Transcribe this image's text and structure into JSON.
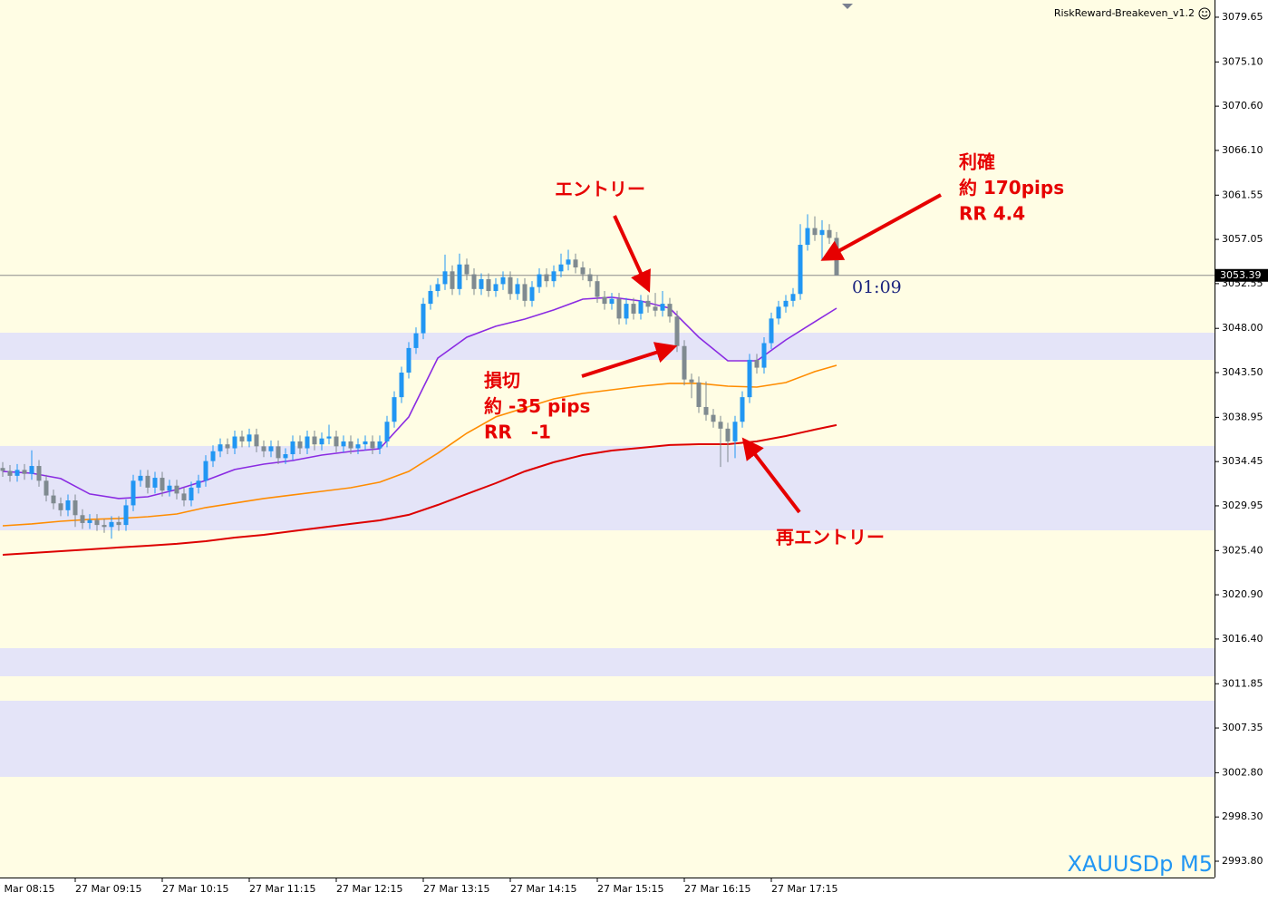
{
  "chart_data": {
    "type": "candlestick",
    "title": "RiskReward-Breakeven_v1.2",
    "symbol_label": "XAUUSDp M5",
    "countdown": "01:09",
    "up_color": "#2196f3",
    "down_color": "#7f8a90",
    "zone_color": "#e4e4f8",
    "price_line_color": "#8c8c8c",
    "categories": [
      null,
      null,
      null,
      null,
      null,
      null,
      null,
      null,
      null,
      null,
      null,
      null,
      null,
      null,
      null,
      null,
      null,
      null,
      null,
      null,
      null,
      null,
      null,
      null,
      null,
      null,
      null,
      null,
      null,
      null,
      null,
      null,
      null,
      null,
      null,
      null,
      null,
      null,
      null,
      null,
      null,
      null,
      null,
      null,
      null,
      null,
      null,
      null,
      null,
      null,
      null,
      null,
      null,
      null,
      null,
      null,
      null,
      null,
      null,
      null,
      null,
      null,
      null,
      null,
      null,
      null,
      null,
      null,
      null,
      null,
      null,
      null,
      null,
      null,
      null,
      null,
      null,
      null,
      null,
      null,
      null,
      null,
      null,
      null,
      null,
      null,
      null,
      null,
      null,
      null,
      null,
      null,
      null,
      null,
      null,
      null,
      null,
      null,
      null,
      null,
      null,
      null,
      null,
      null,
      null,
      null,
      null,
      null,
      null,
      null,
      null,
      null,
      null,
      null,
      null,
      null
    ],
    "open": [
      3033.8,
      3033.5,
      3033.0,
      3033.6,
      3033.2,
      3034.0,
      3032.5,
      3031.0,
      3030.2,
      3029.5,
      3030.5,
      3029.0,
      3028.2,
      3028.5,
      3028.0,
      3027.8,
      3028.3,
      3028.0,
      3030.0,
      3032.5,
      3033.0,
      3031.8,
      3032.8,
      3031.5,
      3032.0,
      3031.2,
      3030.5,
      3031.8,
      3032.5,
      3034.5,
      3035.5,
      3036.2,
      3035.8,
      3037.0,
      3036.5,
      3037.2,
      3036.0,
      3035.5,
      3036.0,
      3034.8,
      3035.2,
      3036.5,
      3035.8,
      3037.0,
      3036.2,
      3036.8,
      3037.0,
      3036.0,
      3036.5,
      3035.8,
      3036.2,
      3036.5,
      3035.8,
      3036.5,
      3038.5,
      3041.0,
      3043.5,
      3046.0,
      3047.5,
      3050.5,
      3051.8,
      3052.5,
      3053.8,
      3052.0,
      3054.5,
      3053.5,
      3052.0,
      3053.0,
      3051.8,
      3052.5,
      3053.2,
      3051.5,
      3052.5,
      3050.8,
      3052.2,
      3053.5,
      3052.8,
      3053.8,
      3054.5,
      3055.0,
      3054.2,
      3053.5,
      3052.8,
      3051.2,
      3050.5,
      3051.0,
      3049.0,
      3050.5,
      3049.5,
      3050.8,
      3050.2,
      3049.8,
      3050.5,
      3049.2,
      3046.2,
      3042.8,
      3042.5,
      3040.0,
      3039.2,
      3038.5,
      3037.8,
      3036.5,
      3038.5,
      3041.0,
      3044.8,
      3044.0,
      3046.5,
      3049.0,
      3050.2,
      3050.8,
      3051.5,
      3056.5,
      3058.2,
      3057.5,
      3058.0,
      3057.2
    ],
    "high": [
      3034.4,
      3034.1,
      3034.2,
      3034.2,
      3035.6,
      3034.6,
      3033.1,
      3031.6,
      3030.8,
      3031.1,
      3031.1,
      3029.6,
      3029.1,
      3029.1,
      3028.6,
      3028.9,
      3028.9,
      3030.6,
      3033.1,
      3033.6,
      3033.6,
      3033.4,
      3033.4,
      3032.6,
      3032.6,
      3031.8,
      3032.4,
      3033.1,
      3035.1,
      3036.1,
      3036.8,
      3036.8,
      3037.6,
      3037.6,
      3037.8,
      3037.8,
      3036.6,
      3036.6,
      3036.6,
      3035.8,
      3037.1,
      3037.1,
      3037.6,
      3037.6,
      3037.4,
      3038.2,
      3037.6,
      3037.1,
      3037.1,
      3036.8,
      3037.1,
      3037.1,
      3037.1,
      3039.1,
      3041.6,
      3044.1,
      3046.6,
      3048.1,
      3051.1,
      3052.4,
      3053.1,
      3055.5,
      3054.4,
      3055.6,
      3055.1,
      3054.1,
      3053.6,
      3053.6,
      3053.1,
      3053.8,
      3053.8,
      3053.1,
      3053.1,
      3052.8,
      3054.1,
      3054.1,
      3054.4,
      3055.6,
      3056.0,
      3055.6,
      3054.8,
      3054.1,
      3053.4,
      3051.8,
      3051.6,
      3051.6,
      3051.1,
      3051.1,
      3051.4,
      3051.4,
      3051.6,
      3051.8,
      3051.1,
      3049.8,
      3046.8,
      3043.4,
      3043.1,
      3042.6,
      3039.8,
      3039.1,
      3038.4,
      3039.1,
      3041.6,
      3045.4,
      3045.4,
      3047.1,
      3049.6,
      3050.8,
      3051.4,
      3052.1,
      3058.6,
      3059.6,
      3059.4,
      3059.0,
      3058.6,
      3057.8
    ],
    "low": [
      3032.9,
      3032.4,
      3032.4,
      3032.6,
      3032.6,
      3031.9,
      3030.4,
      3029.6,
      3028.9,
      3028.9,
      3027.8,
      3027.6,
      3027.6,
      3027.4,
      3027.2,
      3026.6,
      3027.4,
      3027.4,
      3029.4,
      3031.9,
      3031.2,
      3031.2,
      3030.9,
      3030.9,
      3030.6,
      3029.9,
      3029.9,
      3031.2,
      3031.9,
      3033.9,
      3034.9,
      3035.2,
      3035.2,
      3035.9,
      3035.9,
      3035.4,
      3034.9,
      3034.9,
      3034.2,
      3034.2,
      3034.6,
      3035.2,
      3035.2,
      3035.6,
      3035.6,
      3036.2,
      3035.4,
      3035.4,
      3035.2,
      3035.2,
      3035.6,
      3035.2,
      3035.2,
      3035.9,
      3037.9,
      3040.4,
      3042.9,
      3045.4,
      3046.9,
      3049.9,
      3051.2,
      3051.9,
      3051.4,
      3051.4,
      3052.9,
      3051.4,
      3051.4,
      3051.2,
      3051.2,
      3051.9,
      3050.9,
      3050.9,
      3050.2,
      3050.2,
      3051.6,
      3052.2,
      3052.2,
      3053.2,
      3053.9,
      3053.6,
      3052.9,
      3052.2,
      3050.6,
      3049.9,
      3049.9,
      3048.4,
      3048.4,
      3048.9,
      3048.9,
      3049.6,
      3049.2,
      3049.2,
      3048.6,
      3045.6,
      3042.2,
      3040.9,
      3039.4,
      3038.6,
      3037.9,
      3033.9,
      3034.4,
      3034.8,
      3037.9,
      3040.4,
      3043.4,
      3043.4,
      3045.9,
      3048.4,
      3049.6,
      3050.2,
      3050.9,
      3055.9,
      3056.9,
      3054.9,
      3056.6,
      3053.39
    ],
    "close": [
      3033.5,
      3033.0,
      3033.6,
      3033.2,
      3034.0,
      3032.5,
      3031.0,
      3030.2,
      3029.5,
      3030.5,
      3029.0,
      3028.2,
      3028.5,
      3028.0,
      3027.8,
      3028.3,
      3028.0,
      3030.0,
      3032.5,
      3033.0,
      3031.8,
      3032.8,
      3031.5,
      3032.0,
      3031.2,
      3030.5,
      3031.8,
      3032.5,
      3034.5,
      3035.5,
      3036.2,
      3035.8,
      3037.0,
      3036.5,
      3037.2,
      3036.0,
      3035.5,
      3036.0,
      3034.8,
      3035.2,
      3036.5,
      3035.8,
      3037.0,
      3036.2,
      3036.8,
      3037.0,
      3036.0,
      3036.5,
      3035.8,
      3036.2,
      3036.5,
      3035.8,
      3036.5,
      3038.5,
      3041.0,
      3043.5,
      3046.0,
      3047.5,
      3050.5,
      3051.8,
      3052.5,
      3053.8,
      3052.0,
      3054.5,
      3053.5,
      3052.0,
      3053.0,
      3051.8,
      3052.5,
      3053.2,
      3051.5,
      3052.5,
      3050.8,
      3052.2,
      3053.5,
      3052.8,
      3053.8,
      3054.5,
      3055.0,
      3054.2,
      3053.5,
      3052.8,
      3051.2,
      3050.5,
      3051.0,
      3049.0,
      3050.5,
      3049.5,
      3050.8,
      3050.2,
      3049.8,
      3050.5,
      3049.2,
      3046.2,
      3042.8,
      3042.5,
      3040.0,
      3039.2,
      3038.5,
      3037.8,
      3036.5,
      3038.5,
      3041.0,
      3044.8,
      3044.0,
      3046.5,
      3049.0,
      3050.2,
      3050.8,
      3051.5,
      3056.5,
      3058.2,
      3057.5,
      3058.0,
      3057.2,
      3053.39
    ],
    "x": [
      0,
      4,
      8,
      12,
      16,
      20,
      24,
      28,
      32,
      36,
      40,
      44,
      48,
      52,
      56,
      60,
      64,
      68,
      72,
      76,
      80,
      84,
      88,
      92,
      96,
      100,
      104,
      108,
      112,
      115
    ],
    "series": [
      {
        "color": "#8a2be2",
        "values": [
          3033.45,
          3033.27,
          3032.72,
          3031.15,
          3030.69,
          3030.87,
          3031.61,
          3032.53,
          3033.64,
          3034.19,
          3034.56,
          3035.11,
          3035.48,
          3035.76,
          3038.99,
          3044.98,
          3047.1,
          3048.21,
          3048.94,
          3049.87,
          3050.97,
          3051.16,
          3050.79,
          3050.05,
          3047.1,
          3044.7,
          3044.7,
          3046.82,
          3048.67,
          3050.05
        ]
      },
      {
        "color": "#ff8c00",
        "values": [
          3027.92,
          3028.11,
          3028.38,
          3028.57,
          3028.66,
          3028.84,
          3029.12,
          3029.77,
          3030.23,
          3030.69,
          3031.06,
          3031.42,
          3031.79,
          3032.35,
          3033.45,
          3035.3,
          3037.33,
          3038.99,
          3039.91,
          3040.83,
          3041.38,
          3041.75,
          3042.12,
          3042.4,
          3042.4,
          3042.12,
          3042.03,
          3042.49,
          3043.6,
          3044.24
        ]
      },
      {
        "color": "#dd0000",
        "values": [
          3024.97,
          3025.15,
          3025.34,
          3025.52,
          3025.71,
          3025.89,
          3026.08,
          3026.35,
          3026.72,
          3027.0,
          3027.37,
          3027.74,
          3028.11,
          3028.47,
          3029.03,
          3030.04,
          3031.15,
          3032.25,
          3033.45,
          3034.38,
          3035.11,
          3035.57,
          3035.85,
          3036.13,
          3036.22,
          3036.22,
          3036.5,
          3037.05,
          3037.7,
          3038.16
        ]
      }
    ],
    "zones": [
      [
        3047.56,
        3044.79
      ],
      [
        3036.04,
        3027.46
      ],
      [
        3015.47,
        3012.61
      ],
      [
        3010.12,
        3002.38
      ]
    ],
    "xlim": [
      -0.375,
      167.125
    ],
    "ylim": [
      2992.14,
      3081.4
    ],
    "xticks": [
      {
        "value": -2,
        "label": "27 Mar 08:15"
      },
      {
        "value": 10,
        "label": "27 Mar 09:15"
      },
      {
        "value": 22,
        "label": "27 Mar 10:15"
      },
      {
        "value": 34,
        "label": "27 Mar 11:15"
      },
      {
        "value": 46,
        "label": "27 Mar 12:15"
      },
      {
        "value": 58,
        "label": "27 Mar 13:15"
      },
      {
        "value": 70,
        "label": "27 Mar 14:15"
      },
      {
        "value": 82,
        "label": "27 Mar 15:15"
      },
      {
        "value": 94,
        "label": "27 Mar 16:15"
      },
      {
        "value": 106,
        "label": "27 Mar 17:15"
      }
    ],
    "yticks": [
      3079.65,
      {
        "value": 3075.1,
        "label": "3075.10"
      },
      {
        "value": 3070.6,
        "label": "3070.60"
      },
      {
        "value": 3066.1,
        "label": "3066.10"
      },
      3061.55,
      3057.05,
      3052.55,
      {
        "value": 3048,
        "label": "3048.00"
      },
      {
        "value": 3043.5,
        "label": "3043.50"
      },
      3038.95,
      3034.45,
      3029.95,
      {
        "value": 3025.4,
        "label": "3025.40"
      },
      {
        "value": 3020.9,
        "label": "3020.90"
      },
      {
        "value": 3016.4,
        "label": "3016.40"
      },
      3011.85,
      3007.35,
      {
        "value": 3002.8,
        "label": "3002.80"
      },
      {
        "value": 2998.3,
        "label": "2998.30"
      },
      {
        "value": 2993.8,
        "label": "2993.80"
      }
    ],
    "annotations": [
      [
        "エントリー"
      ],
      [
        "損切",
        "約 -35 pips",
        "RR   -1"
      ],
      [
        "利確",
        "約 170pips",
        "RR 4.4"
      ],
      [
        "再エントリー"
      ]
    ]
  }
}
